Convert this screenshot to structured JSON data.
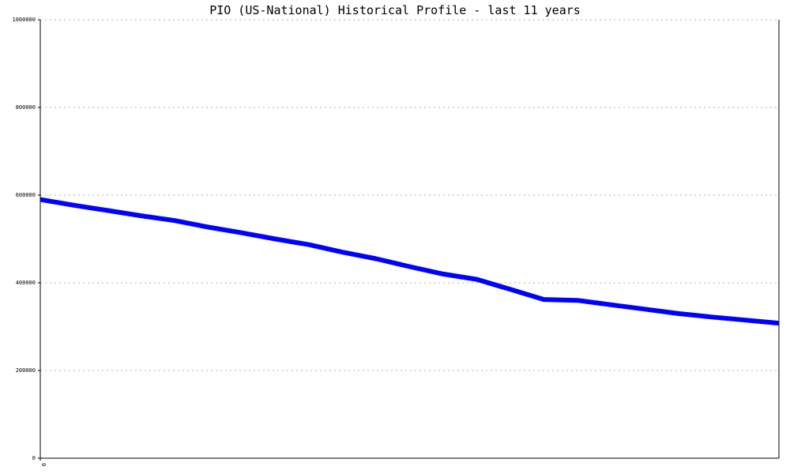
{
  "chart_data": {
    "type": "line",
    "title": "PIO (US-National) Historical Profile - last 11 years",
    "xlabel": "",
    "ylabel": "",
    "ylim": [
      0,
      1000000
    ],
    "yticks": [
      {
        "value": 0,
        "label": "0"
      },
      {
        "value": 200000,
        "label": "200000"
      },
      {
        "value": 400000,
        "label": "400000"
      },
      {
        "value": 600000,
        "label": "600000"
      },
      {
        "value": 800000,
        "label": "800000"
      },
      {
        "value": 1000000,
        "label": "1000000"
      }
    ],
    "xticks": [
      {
        "value": 0,
        "label": "0"
      }
    ],
    "xlim": [
      0,
      132
    ],
    "grid": "horizontal-dotted",
    "legend": "none",
    "series": [
      {
        "color": "#0000ff",
        "x": [
          0,
          6,
          12,
          18,
          24,
          30,
          36,
          42,
          48,
          54,
          60,
          66,
          72,
          78,
          84,
          90,
          96,
          102,
          108,
          114,
          120,
          126,
          132
        ],
        "values": [
          590000,
          577000,
          565000,
          553000,
          542000,
          527000,
          514000,
          500000,
          487000,
          470000,
          455000,
          437000,
          420000,
          408000,
          385000,
          362000,
          360000,
          350000,
          340000,
          330000,
          322000,
          315000,
          308000
        ]
      }
    ]
  }
}
